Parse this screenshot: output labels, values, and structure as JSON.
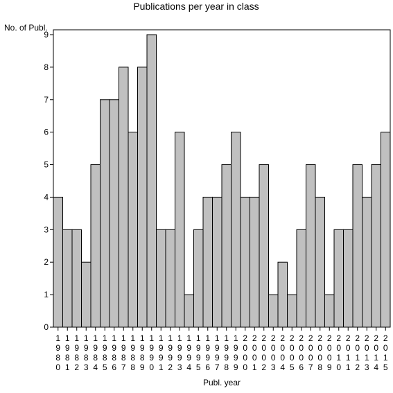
{
  "chart_data": {
    "type": "bar",
    "title": "Publications per year in class",
    "xlabel": "Publ. year",
    "ylabel": "No. of Publ.",
    "ylim": [
      0,
      9
    ],
    "yticks": [
      0,
      1,
      2,
      3,
      4,
      5,
      6,
      7,
      8,
      9
    ],
    "grid": false,
    "colors": {
      "bar_fill": "#c0c0c0",
      "bar_stroke": "#000000"
    },
    "categories": [
      "1980",
      "1981",
      "1982",
      "1983",
      "1984",
      "1985",
      "1986",
      "1987",
      "1988",
      "1989",
      "1990",
      "1991",
      "1992",
      "1993",
      "1994",
      "1995",
      "1996",
      "1997",
      "1998",
      "1999",
      "2000",
      "2001",
      "2002",
      "2003",
      "2004",
      "2005",
      "2006",
      "2007",
      "2008",
      "2009",
      "2010",
      "2011",
      "2012",
      "2013",
      "2014",
      "2015"
    ],
    "values": [
      4,
      3,
      3,
      2,
      5,
      7,
      7,
      8,
      6,
      8,
      9,
      3,
      3,
      6,
      1,
      3,
      4,
      4,
      5,
      6,
      4,
      4,
      5,
      1,
      2,
      1,
      3,
      5,
      4,
      1,
      3,
      3,
      5,
      4,
      5,
      6
    ]
  }
}
